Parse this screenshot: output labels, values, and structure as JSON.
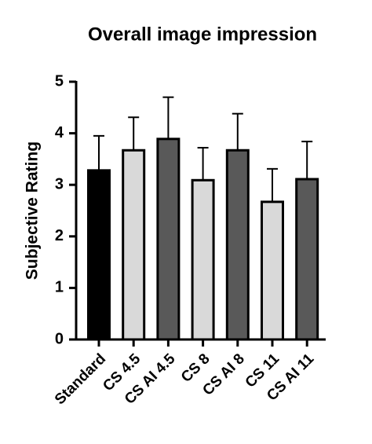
{
  "chart_data": {
    "type": "bar",
    "title": "Overall image impression",
    "y_label": "Subjective  Rating",
    "categories": [
      "Standard",
      "CS 4.5",
      "CS AI 4.5",
      "CS 8",
      "CS AI 8",
      "CS 11",
      "CS AI 11"
    ],
    "values": [
      3.28,
      3.67,
      3.89,
      3.09,
      3.67,
      2.67,
      3.11
    ],
    "errors": [
      0.67,
      0.64,
      0.81,
      0.63,
      0.71,
      0.64,
      0.73
    ],
    "colors": [
      "#000000",
      "#d9d9d9",
      "#595959",
      "#d9d9d9",
      "#595959",
      "#d9d9d9",
      "#595959"
    ],
    "ylim": [
      0,
      5
    ],
    "yticks": [
      0,
      1,
      2,
      3,
      4,
      5
    ]
  }
}
